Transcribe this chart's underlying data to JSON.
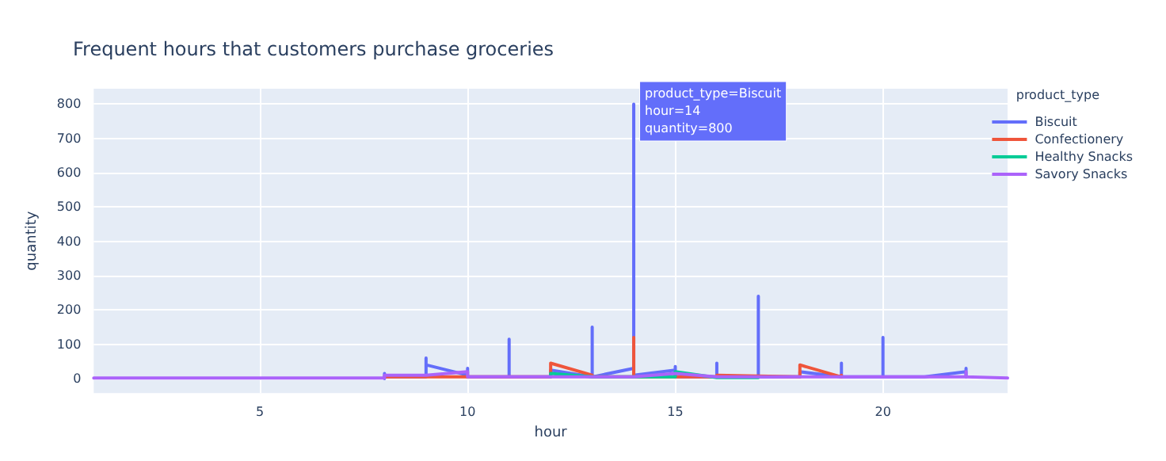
{
  "chart_data": {
    "type": "line",
    "title": "Frequent hours that customers purchase groceries",
    "xlabel": "hour",
    "ylabel": "quantity",
    "legend_title": "product_type",
    "legend": "top right",
    "grid": true,
    "marker": "none",
    "line_style": "solid",
    "xlim": [
      1,
      23
    ],
    "xticks": [
      5,
      10,
      15,
      20
    ],
    "ylim": [
      -42,
      845
    ],
    "yticks": [
      0,
      100,
      200,
      300,
      400,
      500,
      600,
      700,
      800
    ],
    "annotations": [
      {
        "text": "product_type=Biscuit\nhour=14\nquantity=800",
        "x": 14,
        "y": 800
      }
    ],
    "series": [
      {
        "name": "Biscuit",
        "color": "#636efa",
        "x": [
          8,
          8,
          8,
          9,
          9,
          9,
          10,
          10,
          10,
          11,
          11,
          11,
          12,
          12,
          13,
          13,
          13,
          14,
          14,
          14,
          15,
          15,
          15,
          16,
          16,
          16,
          17,
          17,
          17,
          18,
          18,
          19,
          19,
          19,
          20,
          20,
          20,
          21,
          22,
          22,
          22
        ],
        "values": [
          0,
          15,
          5,
          5,
          60,
          40,
          10,
          30,
          5,
          5,
          115,
          5,
          5,
          25,
          5,
          150,
          5,
          30,
          800,
          10,
          25,
          35,
          5,
          5,
          45,
          5,
          5,
          240,
          5,
          5,
          20,
          5,
          45,
          5,
          5,
          120,
          5,
          5,
          20,
          30,
          5
        ]
      },
      {
        "name": "Confectionery",
        "color": "#ef553b",
        "x": [
          8,
          12,
          12,
          13,
          13,
          14,
          14,
          14,
          16,
          16,
          18,
          18,
          19,
          19
        ],
        "values": [
          5,
          5,
          45,
          10,
          5,
          5,
          120,
          5,
          5,
          10,
          5,
          40,
          5,
          10
        ]
      },
      {
        "name": "Healthy Snacks",
        "color": "#00cc96",
        "x": [
          12,
          12,
          13,
          15,
          15,
          16,
          17
        ],
        "values": [
          5,
          15,
          5,
          5,
          20,
          3,
          3
        ]
      },
      {
        "name": "Savory Snacks",
        "color": "#ab63fa",
        "x": [
          1,
          8,
          8,
          9,
          10,
          10,
          14,
          15,
          16,
          20,
          22,
          22,
          22,
          23
        ],
        "values": [
          2,
          2,
          10,
          10,
          20,
          5,
          5,
          15,
          5,
          5,
          5,
          20,
          5,
          2
        ]
      }
    ]
  }
}
